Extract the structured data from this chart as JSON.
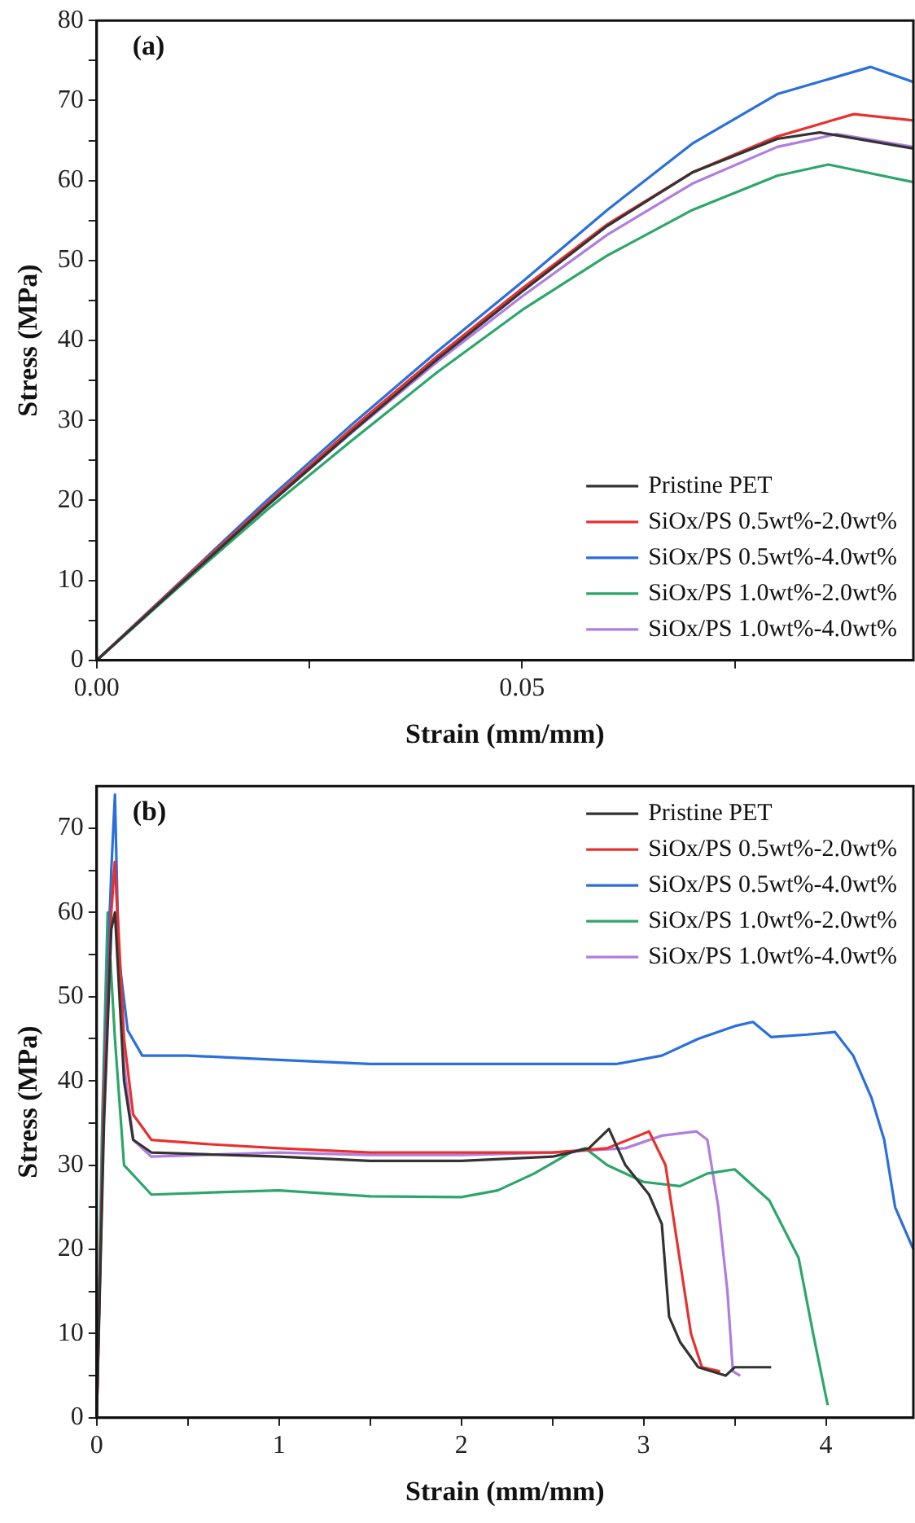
{
  "chart_data": [
    {
      "type": "line",
      "xlabel": "Strain (mm/mm)",
      "ylabel": "Stress (MPa)",
      "annotations": [
        "(a)"
      ],
      "legend": "bottom right",
      "marker": "none",
      "line_style": "solid",
      "grid": false,
      "xlim": [
        0,
        0.096
      ],
      "xticks": [
        {
          "value": 0,
          "label": "0.00"
        },
        {
          "value": 0.025,
          "label": null
        },
        {
          "value": 0.05,
          "label": "0.05"
        },
        {
          "value": 0.075,
          "label": null
        }
      ],
      "ylim": [
        0,
        80
      ],
      "yticks": [
        0,
        {
          "value": 5,
          "label": null
        },
        10,
        {
          "value": 15,
          "label": null
        },
        20,
        {
          "value": 25,
          "label": null
        },
        30,
        {
          "value": 35,
          "label": null
        },
        40,
        {
          "value": 45,
          "label": null
        },
        50,
        {
          "value": 55,
          "label": null
        },
        60,
        {
          "value": 65,
          "label": null
        },
        70,
        {
          "value": 75,
          "label": null
        },
        80
      ],
      "series": [
        {
          "name": "Pristine PET",
          "color": "#333333",
          "x": [
            0,
            0.01,
            0.02,
            0.03,
            0.04,
            0.05,
            0.06,
            0.07,
            0.08,
            0.085,
            0.096
          ],
          "values": [
            0,
            9.7,
            19.3,
            28.6,
            37.6,
            46.1,
            54.3,
            61,
            65.2,
            66,
            64
          ]
        },
        {
          "name": "SiOx/PS 0.5wt%-2.0wt%",
          "color": "#e8312f",
          "x": [
            0,
            0.01,
            0.02,
            0.03,
            0.04,
            0.05,
            0.06,
            0.07,
            0.08,
            0.089,
            0.096
          ],
          "values": [
            0,
            9.9,
            19.6,
            29,
            38,
            46.5,
            54.5,
            61,
            65.5,
            68.3,
            67.5
          ]
        },
        {
          "name": "SiOx/PS 0.5wt%-4.0wt%",
          "color": "#2a6fdb",
          "x": [
            0,
            0.01,
            0.02,
            0.03,
            0.04,
            0.05,
            0.06,
            0.07,
            0.08,
            0.091,
            0.096
          ],
          "values": [
            0,
            10,
            20,
            29.5,
            38.6,
            47.3,
            56.3,
            64.6,
            70.8,
            74.2,
            72.3
          ]
        },
        {
          "name": "SiOx/PS 1.0wt%-2.0wt%",
          "color": "#2ca66a",
          "x": [
            0,
            0.01,
            0.02,
            0.03,
            0.04,
            0.05,
            0.06,
            0.07,
            0.08,
            0.086,
            0.096
          ],
          "values": [
            0,
            9.5,
            18.8,
            27.5,
            36,
            43.8,
            50.6,
            56.3,
            60.6,
            62,
            59.8
          ]
        },
        {
          "name": "SiOx/PS 1.0wt%-4.0wt%",
          "color": "#b07de0",
          "x": [
            0,
            0.01,
            0.02,
            0.03,
            0.04,
            0.05,
            0.06,
            0.07,
            0.08,
            0.087,
            0.096
          ],
          "values": [
            0,
            9.8,
            19.3,
            28.5,
            37.3,
            45.5,
            53.2,
            59.6,
            64.2,
            65.8,
            64.2
          ]
        }
      ]
    },
    {
      "type": "line",
      "xlabel": "Strain (mm/mm)",
      "ylabel": "Stress (MPa)",
      "annotations": [
        "(b)"
      ],
      "legend": "top right",
      "marker": "none",
      "line_style": "solid",
      "grid": false,
      "xlim": [
        0,
        4.48
      ],
      "xticks": [
        0,
        {
          "value": 0.5,
          "label": null
        },
        1,
        {
          "value": 1.5,
          "label": null
        },
        2,
        {
          "value": 2.5,
          "label": null
        },
        3,
        {
          "value": 3.5,
          "label": null
        },
        4
      ],
      "ylim": [
        0,
        75
      ],
      "yticks": [
        0,
        {
          "value": 5,
          "label": null
        },
        10,
        {
          "value": 15,
          "label": null
        },
        20,
        {
          "value": 25,
          "label": null
        },
        30,
        {
          "value": 35,
          "label": null
        },
        40,
        {
          "value": 45,
          "label": null
        },
        50,
        {
          "value": 55,
          "label": null
        },
        60,
        {
          "value": 65,
          "label": null
        },
        70
      ],
      "series": [
        {
          "name": "Pristine PET",
          "color": "#333333",
          "x": [
            0,
            0.04,
            0.08,
            0.1,
            0.15,
            0.2,
            0.3,
            1,
            1.5,
            2,
            2.5,
            2.7,
            2.81,
            2.9,
            3.03,
            3.1,
            3.14,
            3.2,
            3.3,
            3.45,
            3.5,
            3.7
          ],
          "values": [
            0,
            35,
            58,
            60,
            40,
            33,
            31.5,
            31,
            30.5,
            30.5,
            31,
            32,
            34.3,
            30,
            26.5,
            23,
            12,
            9,
            6,
            5,
            6,
            6
          ]
        },
        {
          "name": "SiOx/PS 0.5wt%-2.0wt%",
          "color": "#e8312f",
          "x": [
            0,
            0.04,
            0.08,
            0.1,
            0.15,
            0.2,
            0.3,
            0.6,
            1,
            1.5,
            2,
            2.5,
            2.8,
            3.03,
            3.12,
            3.19,
            3.26,
            3.32,
            3.42
          ],
          "values": [
            0,
            38,
            60,
            66,
            45,
            36,
            33,
            32.5,
            32,
            31.5,
            31.5,
            31.5,
            32,
            34,
            30,
            20,
            10,
            6,
            5.5
          ]
        },
        {
          "name": "SiOx/PS 0.5wt%-4.0wt%",
          "color": "#2a6fdb",
          "x": [
            0,
            0.04,
            0.08,
            0.1,
            0.12,
            0.17,
            0.25,
            0.5,
            1,
            1.5,
            2,
            2.5,
            2.85,
            3.1,
            3.3,
            3.5,
            3.6,
            3.7,
            3.9,
            4.05,
            4.15,
            4.25,
            4.32,
            4.38,
            4.48
          ],
          "values": [
            0,
            40,
            65,
            74,
            55,
            46,
            43,
            43,
            42.5,
            42,
            42,
            42,
            42,
            43,
            45,
            46.5,
            47,
            45.2,
            45.5,
            45.8,
            43,
            38,
            33,
            25,
            20
          ]
        },
        {
          "name": "SiOx/PS 1.0wt%-2.0wt%",
          "color": "#2ca66a",
          "x": [
            0,
            0.03,
            0.06,
            0.1,
            0.15,
            0.3,
            0.7,
            1,
            1.5,
            2,
            2.2,
            2.4,
            2.6,
            2.68,
            2.8,
            3,
            3.2,
            3.35,
            3.5,
            3.69,
            3.85,
            3.93,
            4.01
          ],
          "values": [
            0,
            35,
            60,
            45,
            30,
            26.5,
            26.8,
            27,
            26.3,
            26.2,
            27,
            29,
            31.5,
            32,
            30,
            28,
            27.5,
            29,
            29.5,
            25.8,
            19,
            10,
            1.5
          ]
        },
        {
          "name": "SiOx/PS 1.0wt%-4.0wt%",
          "color": "#b07de0",
          "x": [
            0,
            0.04,
            0.07,
            0.1,
            0.15,
            0.2,
            0.3,
            1,
            1.5,
            2,
            2.5,
            2.9,
            3.1,
            3.29,
            3.35,
            3.41,
            3.46,
            3.49,
            3.53
          ],
          "values": [
            0,
            40,
            60,
            66,
            42,
            33,
            31,
            31.5,
            31.2,
            31.2,
            31.5,
            32,
            33.5,
            34,
            33,
            25,
            15,
            5.5,
            5
          ]
        }
      ]
    }
  ]
}
